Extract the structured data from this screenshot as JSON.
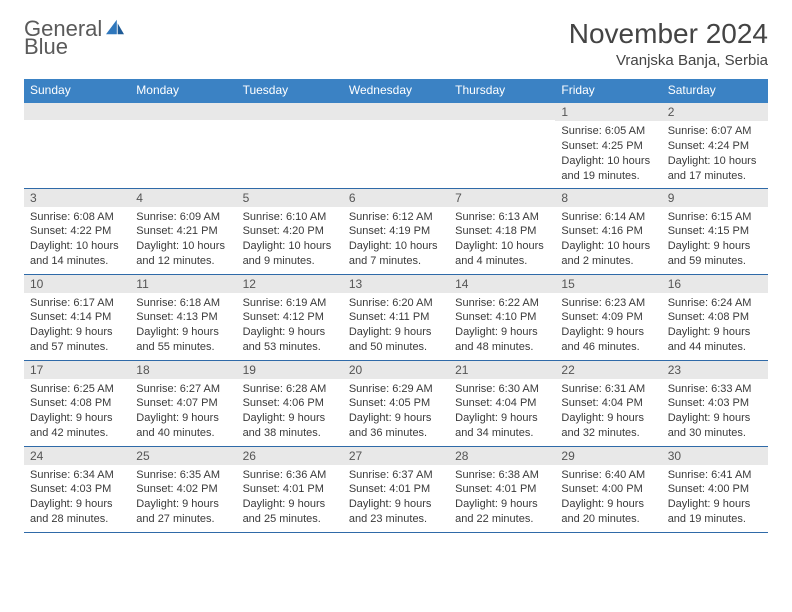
{
  "brand": {
    "general": "General",
    "blue": "Blue"
  },
  "title": "November 2024",
  "location": "Vranjska Banja, Serbia",
  "colors": {
    "headerBg": "#3b82c4",
    "headerText": "#ffffff",
    "rowBorder": "#2f6aa8",
    "dayStrip": "#e8e8e8",
    "bodyText": "#3a3a3a",
    "titleText": "#444444",
    "brandGray": "#5a5a5a",
    "brandBlue": "#2f77bc"
  },
  "dayNames": [
    "Sunday",
    "Monday",
    "Tuesday",
    "Wednesday",
    "Thursday",
    "Friday",
    "Saturday"
  ],
  "weeks": [
    [
      null,
      null,
      null,
      null,
      null,
      {
        "n": "1",
        "sr": "6:05 AM",
        "ss": "4:25 PM",
        "dl": "10 hours and 19 minutes."
      },
      {
        "n": "2",
        "sr": "6:07 AM",
        "ss": "4:24 PM",
        "dl": "10 hours and 17 minutes."
      }
    ],
    [
      {
        "n": "3",
        "sr": "6:08 AM",
        "ss": "4:22 PM",
        "dl": "10 hours and 14 minutes."
      },
      {
        "n": "4",
        "sr": "6:09 AM",
        "ss": "4:21 PM",
        "dl": "10 hours and 12 minutes."
      },
      {
        "n": "5",
        "sr": "6:10 AM",
        "ss": "4:20 PM",
        "dl": "10 hours and 9 minutes."
      },
      {
        "n": "6",
        "sr": "6:12 AM",
        "ss": "4:19 PM",
        "dl": "10 hours and 7 minutes."
      },
      {
        "n": "7",
        "sr": "6:13 AM",
        "ss": "4:18 PM",
        "dl": "10 hours and 4 minutes."
      },
      {
        "n": "8",
        "sr": "6:14 AM",
        "ss": "4:16 PM",
        "dl": "10 hours and 2 minutes."
      },
      {
        "n": "9",
        "sr": "6:15 AM",
        "ss": "4:15 PM",
        "dl": "9 hours and 59 minutes."
      }
    ],
    [
      {
        "n": "10",
        "sr": "6:17 AM",
        "ss": "4:14 PM",
        "dl": "9 hours and 57 minutes."
      },
      {
        "n": "11",
        "sr": "6:18 AM",
        "ss": "4:13 PM",
        "dl": "9 hours and 55 minutes."
      },
      {
        "n": "12",
        "sr": "6:19 AM",
        "ss": "4:12 PM",
        "dl": "9 hours and 53 minutes."
      },
      {
        "n": "13",
        "sr": "6:20 AM",
        "ss": "4:11 PM",
        "dl": "9 hours and 50 minutes."
      },
      {
        "n": "14",
        "sr": "6:22 AM",
        "ss": "4:10 PM",
        "dl": "9 hours and 48 minutes."
      },
      {
        "n": "15",
        "sr": "6:23 AM",
        "ss": "4:09 PM",
        "dl": "9 hours and 46 minutes."
      },
      {
        "n": "16",
        "sr": "6:24 AM",
        "ss": "4:08 PM",
        "dl": "9 hours and 44 minutes."
      }
    ],
    [
      {
        "n": "17",
        "sr": "6:25 AM",
        "ss": "4:08 PM",
        "dl": "9 hours and 42 minutes."
      },
      {
        "n": "18",
        "sr": "6:27 AM",
        "ss": "4:07 PM",
        "dl": "9 hours and 40 minutes."
      },
      {
        "n": "19",
        "sr": "6:28 AM",
        "ss": "4:06 PM",
        "dl": "9 hours and 38 minutes."
      },
      {
        "n": "20",
        "sr": "6:29 AM",
        "ss": "4:05 PM",
        "dl": "9 hours and 36 minutes."
      },
      {
        "n": "21",
        "sr": "6:30 AM",
        "ss": "4:04 PM",
        "dl": "9 hours and 34 minutes."
      },
      {
        "n": "22",
        "sr": "6:31 AM",
        "ss": "4:04 PM",
        "dl": "9 hours and 32 minutes."
      },
      {
        "n": "23",
        "sr": "6:33 AM",
        "ss": "4:03 PM",
        "dl": "9 hours and 30 minutes."
      }
    ],
    [
      {
        "n": "24",
        "sr": "6:34 AM",
        "ss": "4:03 PM",
        "dl": "9 hours and 28 minutes."
      },
      {
        "n": "25",
        "sr": "6:35 AM",
        "ss": "4:02 PM",
        "dl": "9 hours and 27 minutes."
      },
      {
        "n": "26",
        "sr": "6:36 AM",
        "ss": "4:01 PM",
        "dl": "9 hours and 25 minutes."
      },
      {
        "n": "27",
        "sr": "6:37 AM",
        "ss": "4:01 PM",
        "dl": "9 hours and 23 minutes."
      },
      {
        "n": "28",
        "sr": "6:38 AM",
        "ss": "4:01 PM",
        "dl": "9 hours and 22 minutes."
      },
      {
        "n": "29",
        "sr": "6:40 AM",
        "ss": "4:00 PM",
        "dl": "9 hours and 20 minutes."
      },
      {
        "n": "30",
        "sr": "6:41 AM",
        "ss": "4:00 PM",
        "dl": "9 hours and 19 minutes."
      }
    ]
  ],
  "labels": {
    "sunrise": "Sunrise:",
    "sunset": "Sunset:",
    "daylight": "Daylight:"
  }
}
